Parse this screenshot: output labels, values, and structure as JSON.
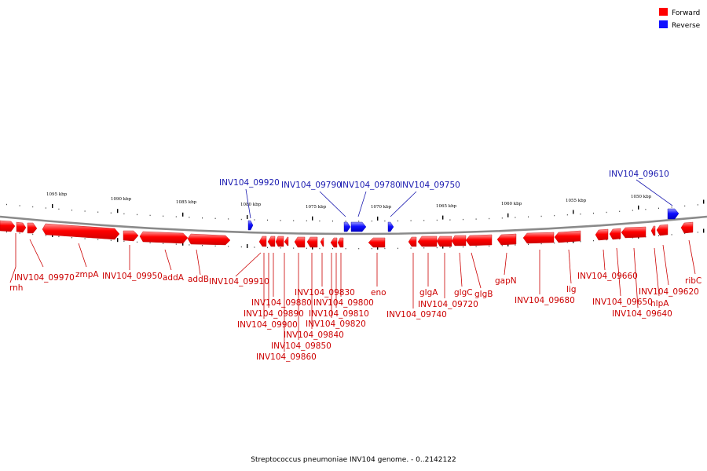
{
  "colors": {
    "forward": "#ff0000",
    "forward_light": "#ff8a8a",
    "reverse": "#1010ff",
    "reverse_light": "#8a8aff",
    "forward_text": "#cc0000",
    "reverse_text": "#1a1ab0"
  },
  "legend": [
    {
      "label": "Forward",
      "color": "#ff0000"
    },
    {
      "label": "Reverse",
      "color": "#1010ff"
    }
  ],
  "caption": "Streptococcus pneumoniae INV104 genome. - 0..2142122",
  "ticks": [
    "1095 kbp",
    "1090 kbp",
    "1085 kbp",
    "1080 kbp",
    "1075 kbp",
    "1070 kbp",
    "1065 kbp",
    "1060 kbp",
    "1055 kbp",
    "1050 kbp"
  ],
  "forward_labels": [
    "rnh",
    "INV104_09970",
    "zmpA",
    "INV104_09950",
    "addA",
    "addB",
    "INV104_09910",
    "INV104_09900",
    "INV104_09890",
    "INV104_09880",
    "INV104_09860",
    "INV104_09850",
    "INV104_09840",
    "INV104_09830",
    "INV104_09820",
    "INV104_09810",
    "INV104_09800",
    "eno",
    "INV104_09740",
    "glgA",
    "INV104_09720",
    "glgC",
    "glgB",
    "gapN",
    "INV104_09680",
    "lig",
    "INV104_09660",
    "INV104_09650",
    "INV104_09640",
    "hlpA",
    "INV104_09620",
    "ribC"
  ],
  "reverse_labels": [
    "INV104_09920",
    "INV104_09790",
    "INV104_09780",
    "INV104_09750",
    "INV104_09610"
  ]
}
